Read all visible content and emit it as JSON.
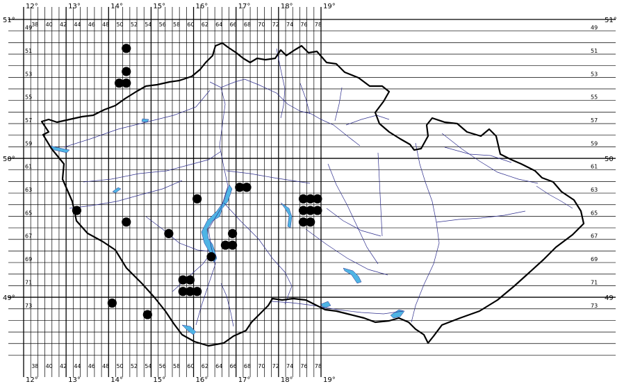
{
  "map": {
    "top_degree_labels": [
      "12°",
      "13°",
      "14°",
      "15°",
      "16°",
      "17°",
      "18°",
      "19°"
    ],
    "bottom_degree_labels": [
      "12°",
      "13°",
      "14°",
      "15°",
      "16°",
      "17°",
      "18°",
      "19°"
    ],
    "left_degree_labels": [
      "51°",
      "50°",
      "49°"
    ],
    "right_degree_labels": [
      "51°",
      "50",
      "49"
    ],
    "column_labels": [
      "38",
      "40",
      "42",
      "44",
      "46",
      "48",
      "50",
      "52",
      "54",
      "56",
      "58",
      "60",
      "62",
      "64",
      "66",
      "68",
      "70",
      "72",
      "74",
      "76",
      "78"
    ],
    "row_labels": [
      "49",
      "51",
      "53",
      "55",
      "57",
      "59",
      "61",
      "63",
      "65",
      "67",
      "69",
      "71",
      "73"
    ],
    "occurrence_cells": [
      [
        51,
        50
      ],
      [
        51,
        52
      ],
      [
        50,
        53
      ],
      [
        51,
        53
      ],
      [
        44,
        64
      ],
      [
        51,
        65
      ],
      [
        61,
        63
      ],
      [
        57,
        66
      ],
      [
        59,
        70
      ],
      [
        60,
        70
      ],
      [
        59,
        71
      ],
      [
        60,
        71
      ],
      [
        61,
        71
      ],
      [
        63,
        68
      ],
      [
        65,
        67
      ],
      [
        66,
        67
      ],
      [
        66,
        66
      ],
      [
        67,
        62
      ],
      [
        68,
        62
      ],
      [
        76,
        63
      ],
      [
        77,
        63
      ],
      [
        78,
        63
      ],
      [
        76,
        64
      ],
      [
        77,
        64
      ],
      [
        78,
        64
      ],
      [
        76,
        65
      ],
      [
        77,
        65
      ],
      [
        49,
        72
      ],
      [
        54,
        73
      ]
    ],
    "colors": {
      "grid": "#000000",
      "border": "#000000",
      "river": "#2c2c8c",
      "lake": "#4fb4e4",
      "dot": "#000000"
    }
  }
}
